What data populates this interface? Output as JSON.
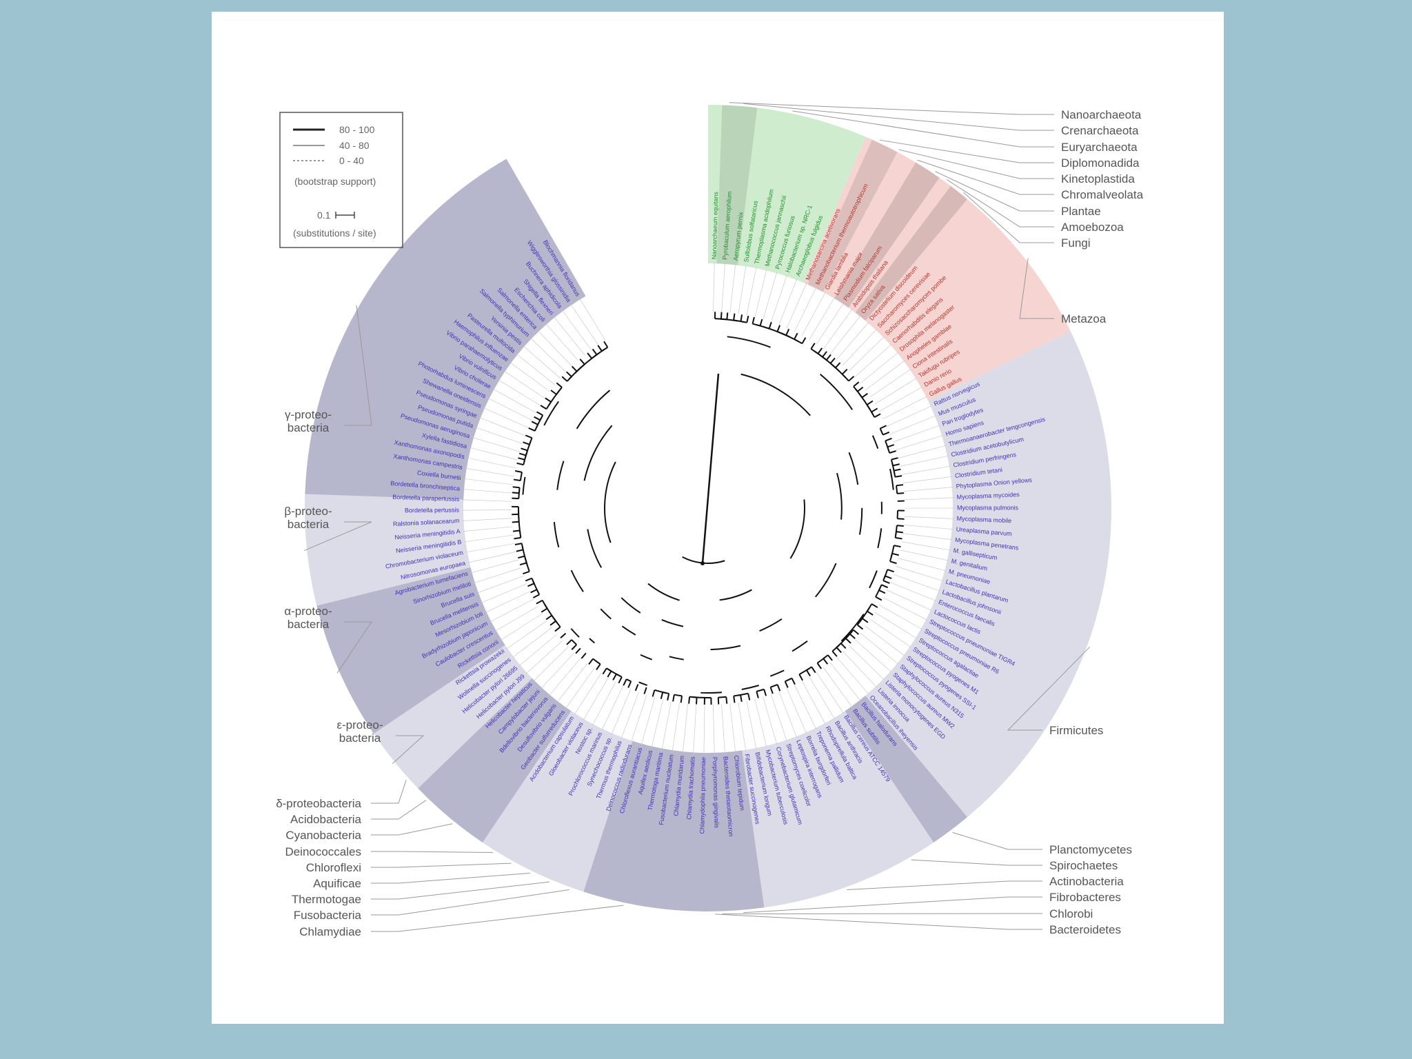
{
  "legend": {
    "support": [
      {
        "label": "80 - 100",
        "style": "solid-thick"
      },
      {
        "label": "40 - 80",
        "style": "solid-thin"
      },
      {
        "label": "0 - 40",
        "style": "dashed"
      }
    ],
    "caption": "(bootstrap support)",
    "scale_value": "0.1",
    "scale_caption": "(substitutions / site)"
  },
  "colors": {
    "background": "#9cc3cf",
    "panel": "#ffffff",
    "bacteria_dark": "#b6b6cc",
    "bacteria_light": "#dcdce8",
    "bacteria_text": "#3d33b8",
    "archaea_band": "#cfeccf",
    "archaea_text": "#1f8f2a",
    "eukaryota_band": "#f5d4d2",
    "eukaryota_text": "#b3352b",
    "leader_line": "#999999",
    "branch": "#111111"
  },
  "groups_right": [
    {
      "label": "Nanoarchaeota"
    },
    {
      "label": "Crenarchaeota"
    },
    {
      "label": "Euryarchaeota"
    },
    {
      "label": "Diplomonadida"
    },
    {
      "label": "Kinetoplastida"
    },
    {
      "label": "Chromalveolata"
    },
    {
      "label": "Plantae"
    },
    {
      "label": "Amoebozoa"
    },
    {
      "label": "Fungi"
    },
    {
      "label": "Metazoa"
    },
    {
      "label": "Firmicutes"
    },
    {
      "label": "Planctomycetes"
    },
    {
      "label": "Spirochaetes"
    },
    {
      "label": "Actinobacteria"
    },
    {
      "label": "Fibrobacteres"
    },
    {
      "label": "Chlorobi"
    },
    {
      "label": "Bacteroidetes"
    }
  ],
  "groups_left": [
    {
      "label": "γ-proteo-\nbacteria"
    },
    {
      "label": "β-proteo-\nbacteria"
    },
    {
      "label": "α-proteo-\nbacteria"
    },
    {
      "label": "ε-proteo-\nbacteria"
    },
    {
      "label": "δ-proteobacteria"
    },
    {
      "label": "Acidobacteria"
    },
    {
      "label": "Cyanobacteria"
    },
    {
      "label": "Deinococcales"
    },
    {
      "label": "Chloroflexi"
    },
    {
      "label": "Aquificae"
    },
    {
      "label": "Thermotogae"
    },
    {
      "label": "Fusobacteria"
    },
    {
      "label": "Chlamydiae"
    }
  ],
  "leaf_labels": [
    "Nanoarchaeum equitans",
    "Pyrobaculum aerophilum",
    "Aeropyrum pernix",
    "Sulfolobus solfataricus",
    "Thermoplasma acidophilum",
    "Methanococcus jannaschii",
    "Pyrococcus furiosus",
    "Halobacterium sp. NRC-1",
    "Archaeoglobus fulgidus",
    "Methanosarcina acetivorans",
    "Methanobacterium thermoautotrophicum",
    "Giardia lamblia",
    "Leishmania major",
    "Plasmodium falciparum",
    "Arabidopsis thaliana",
    "Oryza sativa",
    "Dictyostelium discoideum",
    "Saccharomyces cerevisiae",
    "Schizosaccharomyces pombe",
    "Caenorhabditis elegans",
    "Drosophila melanogaster",
    "Anopheles gambiae",
    "Ciona intestinalis",
    "Takifugu rubripes",
    "Danio rerio",
    "Gallus gallus",
    "Rattus norvegicus",
    "Mus musculus",
    "Pan troglodytes",
    "Homo sapiens",
    "Thermoanaerobacter tengcongensis",
    "Clostridium acetobutylicum",
    "Clostridium perfringens",
    "Clostridium tetani",
    "Phytoplasma Onion yellows",
    "Mycoplasma mycoides",
    "Mycoplasma pulmonis",
    "Mycoplasma mobile",
    "Ureaplasma parvum",
    "Mycoplasma penetrans",
    "M. gallisepticum",
    "M. genitalium",
    "M. pneumoniae",
    "Lactobacillus plantarum",
    "Lactobacillus johnsonii",
    "Enterococcus faecalis",
    "Lactococcus lactis",
    "Streptococcus pneumoniae TIGR4",
    "Streptococcus pneumoniae R6",
    "Streptococcus agalactiae",
    "Streptococcus pyogenes M1",
    "Streptococcus pyogenes SSI-1",
    "Staphylococcus aureus N315",
    "Staphylococcus aureus MW2",
    "Listeria monocytogenes EGD",
    "Listeria innocua",
    "Oceanobacillus iheyensis",
    "Bacillus halodurans",
    "Bacillus subtilis",
    "Bacillus cereus ATCC 14579",
    "Bacillus anthracis",
    "Rhodopirellula baltica",
    "Treponema pallidum",
    "Borrelia burgdorferi",
    "Leptospira interrogans",
    "Streptomyces coelicolor",
    "Corynebacterium glutamicum",
    "Mycobacterium tuberculosis",
    "Bifidobacterium longum",
    "Fibrobacter succinogenes",
    "Chlorobium tepidum",
    "Bacteroides thetaiotaomicron",
    "Porphyromonas gingivalis",
    "Chlamydophila pneumoniae",
    "Chlamydia trachomatis",
    "Chlamydia muridarum",
    "Fusobacterium nucleatum",
    "Thermotoga maritima",
    "Aquifex aeolicus",
    "Chloroflexus aurantiacus",
    "Deinococcus radiodurans",
    "Thermus thermophilus",
    "Synechococcus sp.",
    "Prochlorococcus marinus",
    "Nostoc sp.",
    "Gloeobacter violaceus",
    "Acidobacterium capsulatum",
    "Geobacter sulfurreducens",
    "Desulfovibrio vulgaris",
    "Bdellovibrio bacteriovorus",
    "Campylobacter jejuni",
    "Helicobacter hepaticus",
    "Helicobacter pylori J99",
    "Helicobacter pylori 26695",
    "Wolinella succinogenes",
    "Rickettsia prowazekii",
    "Rickettsia conorii",
    "Caulobacter crescentus",
    "Bradyrhizobium japonicum",
    "Mesorhizobium loti",
    "Brucella melitensis",
    "Brucella suis",
    "Sinorhizobium meliloti",
    "Agrobacterium tumefaciens",
    "Nitrosomonas europaea",
    "Chromobacterium violaceum",
    "Neisseria meningitidis B",
    "Neisseria meningitidis A",
    "Ralstonia solanacearum",
    "Bordetella pertussis",
    "Bordetella parapertussis",
    "Bordetella bronchiseptica",
    "Coxiella burnetii",
    "Xanthomonas campestris",
    "Xanthomonas axonopodis",
    "Xylella fastidiosa",
    "Pseudomonas aeruginosa",
    "Pseudomonas putida",
    "Pseudomonas syringae",
    "Shewanella oneidensis",
    "Photorhabdus luminescens",
    "Vibrio cholerae",
    "Vibrio vulnificus",
    "Vibrio parahaemolyticus",
    "Haemophilus influenzae",
    "Pasteurella multocida",
    "Yersinia pestis",
    "Salmonella typhimurium",
    "Salmonella enterica",
    "Escherichia coli",
    "Shigella flexneri",
    "Buchnera aphidicola",
    "Wigglesworthia glossinidia",
    "Blochmannia floridanus"
  ]
}
